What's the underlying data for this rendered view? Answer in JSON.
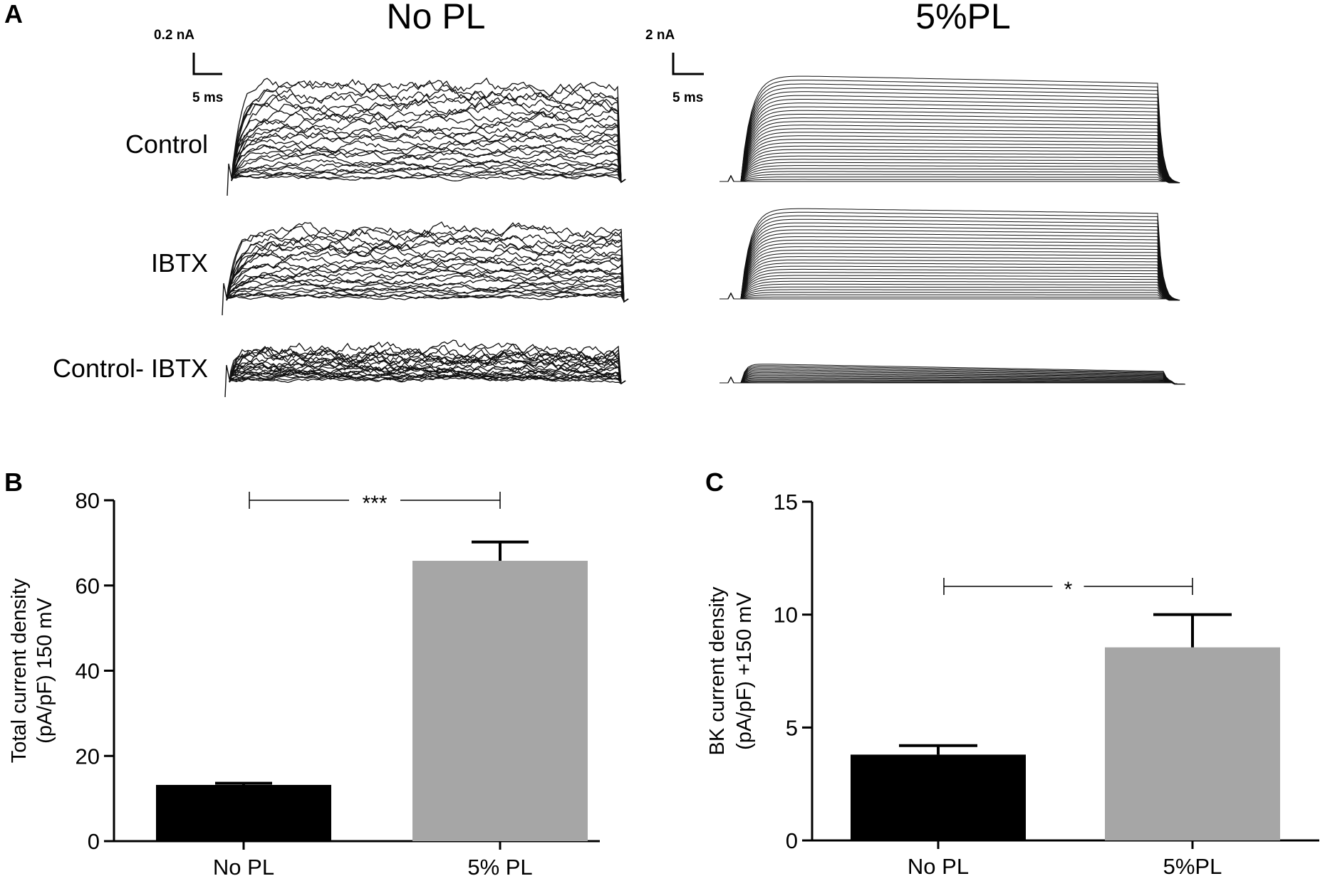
{
  "panel_a": {
    "letter": "A",
    "columns": [
      {
        "title": "No PL",
        "scale_current": "0.2 nA",
        "scale_time": "5 ms"
      },
      {
        "title": "5%PL",
        "scale_current": "2 nA",
        "scale_time": "5 ms"
      }
    ],
    "rows": [
      "Control",
      "IBTX",
      "Control- IBTX"
    ]
  },
  "chart_data": [
    {
      "panel": "B",
      "type": "bar",
      "categories": [
        "No PL",
        "5% PL"
      ],
      "values": [
        13.2,
        65.8
      ],
      "errors": [
        0.4,
        4.4
      ],
      "colors": [
        "#000000",
        "#a6a6a6"
      ],
      "ylabel_line1": "Total current density",
      "ylabel_line2": "(pA/pF) 150 mV",
      "ylim": [
        0,
        80
      ],
      "yticks": [
        "0",
        "20",
        "40",
        "60",
        "80"
      ],
      "significance": "***"
    },
    {
      "panel": "C",
      "type": "bar",
      "categories": [
        "No PL",
        "5%PL"
      ],
      "values": [
        3.8,
        8.55
      ],
      "errors": [
        0.4,
        1.45
      ],
      "colors": [
        "#000000",
        "#a6a6a6"
      ],
      "ylabel_line1": "BK current density",
      "ylabel_line2": "(pA/pF) +150 mV",
      "ylim": [
        0,
        15
      ],
      "yticks": [
        "0",
        "5",
        "10",
        "15"
      ],
      "significance": "*"
    }
  ]
}
